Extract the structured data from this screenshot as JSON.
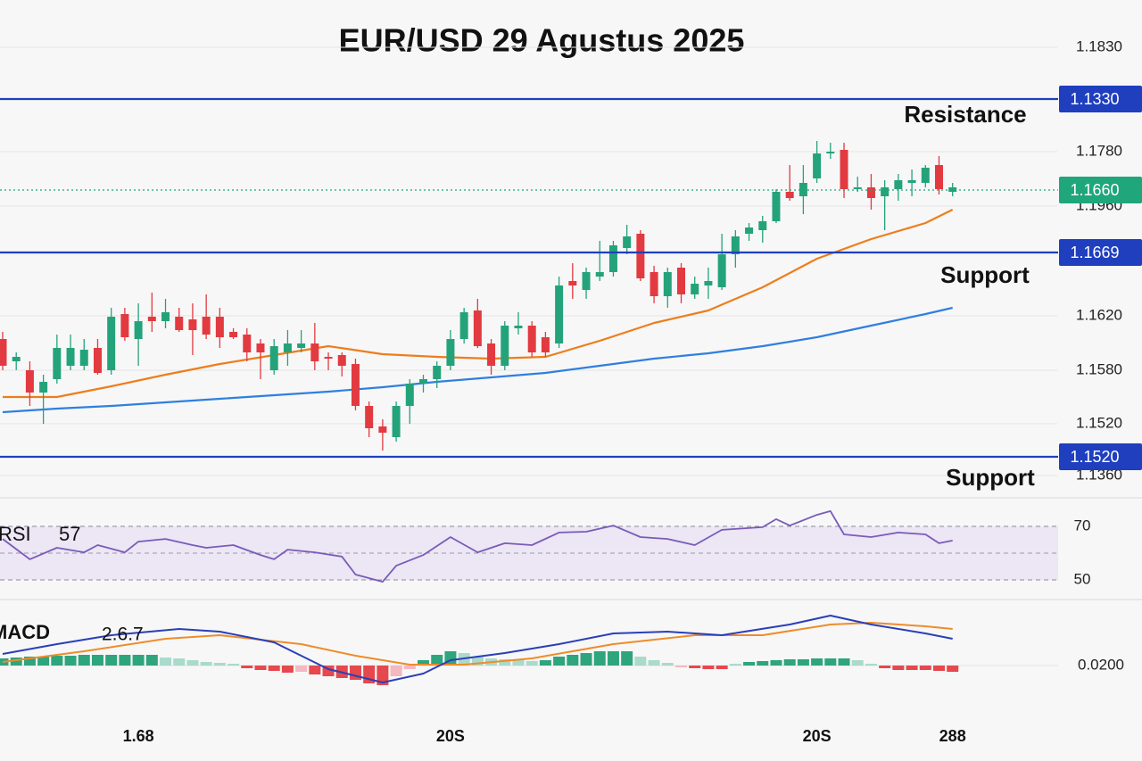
{
  "chart_data": {
    "type": "candlestick",
    "title": "EUR/USD 29 Agustus 2025",
    "categories": [
      null,
      null,
      null,
      null,
      null,
      null,
      null,
      null,
      null,
      null,
      "1.68",
      null,
      null,
      null,
      null,
      null,
      null,
      null,
      null,
      null,
      null,
      null,
      null,
      null,
      null,
      null,
      null,
      null,
      null,
      null,
      null,
      null,
      null,
      "20S",
      null,
      null,
      null,
      null,
      null,
      null,
      null,
      null,
      null,
      null,
      null,
      null,
      null,
      null,
      null,
      null,
      null,
      null,
      null,
      null,
      null,
      null,
      null,
      null,
      null,
      null,
      "20S",
      null,
      null,
      null,
      null,
      null,
      null,
      null,
      null,
      null,
      "288"
    ],
    "ohlc": [
      [
        1.162,
        1.1628,
        1.1585,
        1.159
      ],
      [
        1.1595,
        1.1605,
        1.1585,
        1.16
      ],
      [
        1.1585,
        1.1595,
        1.1545,
        1.156
      ],
      [
        1.156,
        1.158,
        1.1525,
        1.1572
      ],
      [
        1.1575,
        1.1625,
        1.157,
        1.161
      ],
      [
        1.159,
        1.1625,
        1.1585,
        1.161
      ],
      [
        1.159,
        1.162,
        1.1585,
        1.1608
      ],
      [
        1.161,
        1.162,
        1.158,
        1.1582
      ],
      [
        1.1585,
        1.1655,
        1.158,
        1.1645
      ],
      [
        1.1648,
        1.1655,
        1.1618,
        1.1622
      ],
      [
        1.162,
        1.166,
        1.159,
        1.164
      ],
      [
        1.1645,
        1.1672,
        1.1628,
        1.164
      ],
      [
        1.164,
        1.1665,
        1.1632,
        1.165
      ],
      [
        1.1645,
        1.1655,
        1.1628,
        1.163
      ],
      [
        1.1642,
        1.166,
        1.1602,
        1.163
      ],
      [
        1.1645,
        1.167,
        1.162,
        1.1625
      ],
      [
        1.1645,
        1.1655,
        1.161,
        1.1622
      ],
      [
        1.1628,
        1.1632,
        1.162,
        1.1622
      ],
      [
        1.1625,
        1.1632,
        1.1595,
        1.1605
      ],
      [
        1.1615,
        1.162,
        1.1575,
        1.1605
      ],
      [
        1.1585,
        1.162,
        1.158,
        1.1612
      ],
      [
        1.1605,
        1.163,
        1.159,
        1.1615
      ],
      [
        1.161,
        1.163,
        1.1605,
        1.1615
      ],
      [
        1.1615,
        1.1638,
        1.1585,
        1.1595
      ],
      [
        1.16,
        1.1605,
        1.1585,
        1.1598
      ],
      [
        1.1602,
        1.1605,
        1.1578,
        1.159
      ],
      [
        1.1592,
        1.1598,
        1.154,
        1.1545
      ],
      [
        1.1545,
        1.155,
        1.151,
        1.152
      ],
      [
        1.1522,
        1.153,
        1.1495,
        1.1515
      ],
      [
        1.151,
        1.155,
        1.1505,
        1.1545
      ],
      [
        1.1545,
        1.1575,
        1.1525,
        1.157
      ],
      [
        1.157,
        1.158,
        1.156,
        1.1575
      ],
      [
        1.1575,
        1.1595,
        1.1565,
        1.159
      ],
      [
        1.159,
        1.163,
        1.1585,
        1.162
      ],
      [
        1.162,
        1.1655,
        1.1615,
        1.165
      ],
      [
        1.1652,
        1.1665,
        1.161,
        1.1612
      ],
      [
        1.1615,
        1.162,
        1.158,
        1.159
      ],
      [
        1.159,
        1.164,
        1.1585,
        1.1635
      ],
      [
        1.1632,
        1.165,
        1.1625,
        1.1635
      ],
      [
        1.1635,
        1.164,
        1.16,
        1.1605
      ],
      [
        1.1622,
        1.1628,
        1.16,
        1.1605
      ],
      [
        1.1615,
        1.169,
        1.161,
        1.168
      ],
      [
        1.1685,
        1.1705,
        1.1665,
        1.168
      ],
      [
        1.1675,
        1.17,
        1.1665,
        1.1695
      ],
      [
        1.169,
        1.173,
        1.1685,
        1.1695
      ],
      [
        1.1695,
        1.173,
        1.169,
        1.1725
      ],
      [
        1.1722,
        1.1748,
        1.1715,
        1.1735
      ],
      [
        1.1738,
        1.1742,
        1.1685,
        1.1688
      ],
      [
        1.1695,
        1.1702,
        1.166,
        1.1668
      ],
      [
        1.1668,
        1.17,
        1.1655,
        1.1695
      ],
      [
        1.17,
        1.1705,
        1.166,
        1.167
      ],
      [
        1.167,
        1.169,
        1.1665,
        1.1682
      ],
      [
        1.168,
        1.17,
        1.1665,
        1.1685
      ],
      [
        1.1678,
        1.1738,
        1.1675,
        1.1715
      ],
      [
        1.1715,
        1.1742,
        1.17,
        1.1735
      ],
      [
        1.1738,
        1.175,
        1.173,
        1.1745
      ],
      [
        1.1742,
        1.1758,
        1.1728,
        1.1752
      ],
      [
        1.1752,
        1.1788,
        1.175,
        1.1785
      ],
      [
        1.1785,
        1.1815,
        1.1775,
        1.1778
      ],
      [
        1.178,
        1.1815,
        1.176,
        1.1795
      ],
      [
        1.18,
        1.1842,
        1.1795,
        1.1828
      ],
      [
        1.1828,
        1.184,
        1.1822,
        1.183
      ],
      [
        1.1832,
        1.184,
        1.1778,
        1.1788
      ],
      [
        1.1788,
        1.1802,
        1.1785,
        1.179
      ],
      [
        1.179,
        1.1805,
        1.1765,
        1.1778
      ],
      [
        1.178,
        1.1798,
        1.1742,
        1.179
      ],
      [
        1.1788,
        1.1805,
        1.1775,
        1.1798
      ],
      [
        1.1795,
        1.181,
        1.178,
        1.1798
      ],
      [
        1.1795,
        1.1815,
        1.179,
        1.1812
      ],
      [
        1.1815,
        1.1825,
        1.1782,
        1.1788
      ],
      [
        1.1785,
        1.1795,
        1.178,
        1.179
      ]
    ],
    "up_color": "#24a37b",
    "down_color": "#e23a40",
    "ylim": [
      1.1455,
      1.1965
    ],
    "moving_averages": [
      {
        "color": "#ee7d1c",
        "x": [
          0,
          4,
          8,
          12,
          16,
          20,
          24,
          28,
          32,
          36,
          40,
          44,
          48,
          52,
          56,
          60,
          64,
          68,
          70
        ],
        "values": [
          1.1555,
          1.1555,
          1.1567,
          1.158,
          1.1592,
          1.1602,
          1.1612,
          1.1603,
          1.16,
          1.1598,
          1.16,
          1.1618,
          1.1638,
          1.1652,
          1.1678,
          1.171,
          1.1732,
          1.175,
          1.1765
        ]
      },
      {
        "color": "#2f7fe0",
        "x": [
          0,
          4,
          8,
          12,
          16,
          20,
          24,
          28,
          32,
          36,
          40,
          44,
          48,
          52,
          56,
          60,
          64,
          68,
          70
        ],
        "values": [
          1.1538,
          1.1542,
          1.1545,
          1.1549,
          1.1553,
          1.1557,
          1.1561,
          1.1566,
          1.1572,
          1.1577,
          1.1582,
          1.159,
          1.1598,
          1.1604,
          1.1612,
          1.1622,
          1.1635,
          1.1648,
          1.1655
        ]
      }
    ],
    "price_axis_labels": [
      "1.1830",
      "1.1780",
      "1.1960",
      "1.1620",
      "1.1580",
      "1.1520",
      "1.1360"
    ],
    "levels": [
      {
        "price": "1.1330",
        "note": "Resistance",
        "color": "#1f3fbf"
      },
      {
        "price": "1.1660",
        "color": "#1fa67a"
      },
      {
        "price": "1.1669",
        "note": "Support",
        "color": "#1f3fbf"
      },
      {
        "price": "1.1520",
        "note": "Support",
        "color": "#1f3fbf"
      }
    ],
    "rsi": {
      "label": "RSI",
      "value_label": "57",
      "color": "#7a5bb8",
      "band_color": "#ece6f5",
      "ylim": [
        44,
        76
      ],
      "yticks": [
        50,
        70
      ],
      "x": [
        0,
        2,
        4,
        6,
        7,
        9,
        10,
        12,
        14,
        15,
        17,
        19,
        20,
        21,
        23,
        25,
        26,
        28,
        29,
        31,
        33,
        35,
        37,
        39,
        41,
        43,
        45,
        47,
        49,
        51,
        53,
        56,
        57,
        58,
        60,
        61,
        62,
        64,
        66,
        68,
        69,
        70
      ],
      "values": [
        65.3,
        57.7,
        62,
        60.3,
        63,
        60.3,
        64.3,
        65.3,
        63,
        62,
        63,
        59.3,
        57.7,
        61.3,
        60.3,
        58.7,
        52,
        49.3,
        55.3,
        59.3,
        66,
        60.3,
        63.7,
        63,
        67.7,
        68,
        70.3,
        66,
        65.3,
        63,
        68.7,
        69.7,
        72.7,
        70.3,
        74.3,
        75.7,
        67,
        66,
        67.7,
        67,
        63.7,
        64.7
      ]
    },
    "macd": {
      "label": "MACD",
      "value_label": "2.6.7",
      "ylim": [
        0.0115,
        0.0365
      ],
      "yticks": [
        {
          "value": 0.02,
          "label": "0.0200"
        }
      ],
      "macd_line": {
        "color": "#2a3fb8",
        "x": [
          0,
          4,
          8,
          13,
          16,
          20,
          24,
          28,
          31,
          33,
          37,
          41,
          45,
          49,
          53,
          58,
          61,
          64,
          68,
          70
        ],
        "values": [
          0.02325,
          0.026,
          0.0285,
          0.03025,
          0.0295,
          0.0265,
          0.019,
          0.01525,
          0.01775,
          0.0215,
          0.0235,
          0.026,
          0.029,
          0.0295,
          0.0285,
          0.0315,
          0.034,
          0.0315,
          0.029,
          0.0275
        ]
      },
      "signal_line": {
        "color": "#ee8c2a",
        "x": [
          0,
          6,
          12,
          16,
          22,
          26,
          30,
          34,
          39,
          45,
          51,
          56,
          61,
          64,
          68,
          70
        ],
        "values": [
          0.021,
          0.024,
          0.0275,
          0.0285,
          0.026,
          0.02275,
          0.02025,
          0.02025,
          0.022,
          0.026,
          0.0285,
          0.0285,
          0.0315,
          0.032,
          0.031,
          0.03025
        ]
      },
      "histogram": [
        0.022,
        0.02225,
        0.0225,
        0.0225,
        0.02275,
        0.02275,
        0.023,
        0.023,
        0.023,
        0.023,
        0.023,
        0.023,
        0.02225,
        0.022,
        0.0215,
        0.021,
        0.02075,
        0.0205,
        0.01925,
        0.01875,
        0.0185,
        0.018,
        0.01825,
        0.0175,
        0.017,
        0.0165,
        0.016,
        0.015,
        0.0145,
        0.017,
        0.019,
        0.0215,
        0.023,
        0.024,
        0.0235,
        0.0225,
        0.022,
        0.02175,
        0.0215,
        0.02125,
        0.0215,
        0.0225,
        0.023,
        0.0235,
        0.024,
        0.024,
        0.024,
        0.0225,
        0.0215,
        0.02075,
        0.0195,
        0.01925,
        0.019,
        0.019,
        0.0205,
        0.021,
        0.02125,
        0.0215,
        0.02175,
        0.02175,
        0.022,
        0.022,
        0.022,
        0.0215,
        0.0205,
        0.01925,
        0.01875,
        0.01875,
        0.01875,
        0.0185,
        0.01825
      ],
      "hist_up_strong": "#2ea57c",
      "hist_up_weak": "#a9dacb",
      "hist_down_strong": "#e5484d",
      "hist_down_weak": "#f4b8c0"
    }
  }
}
